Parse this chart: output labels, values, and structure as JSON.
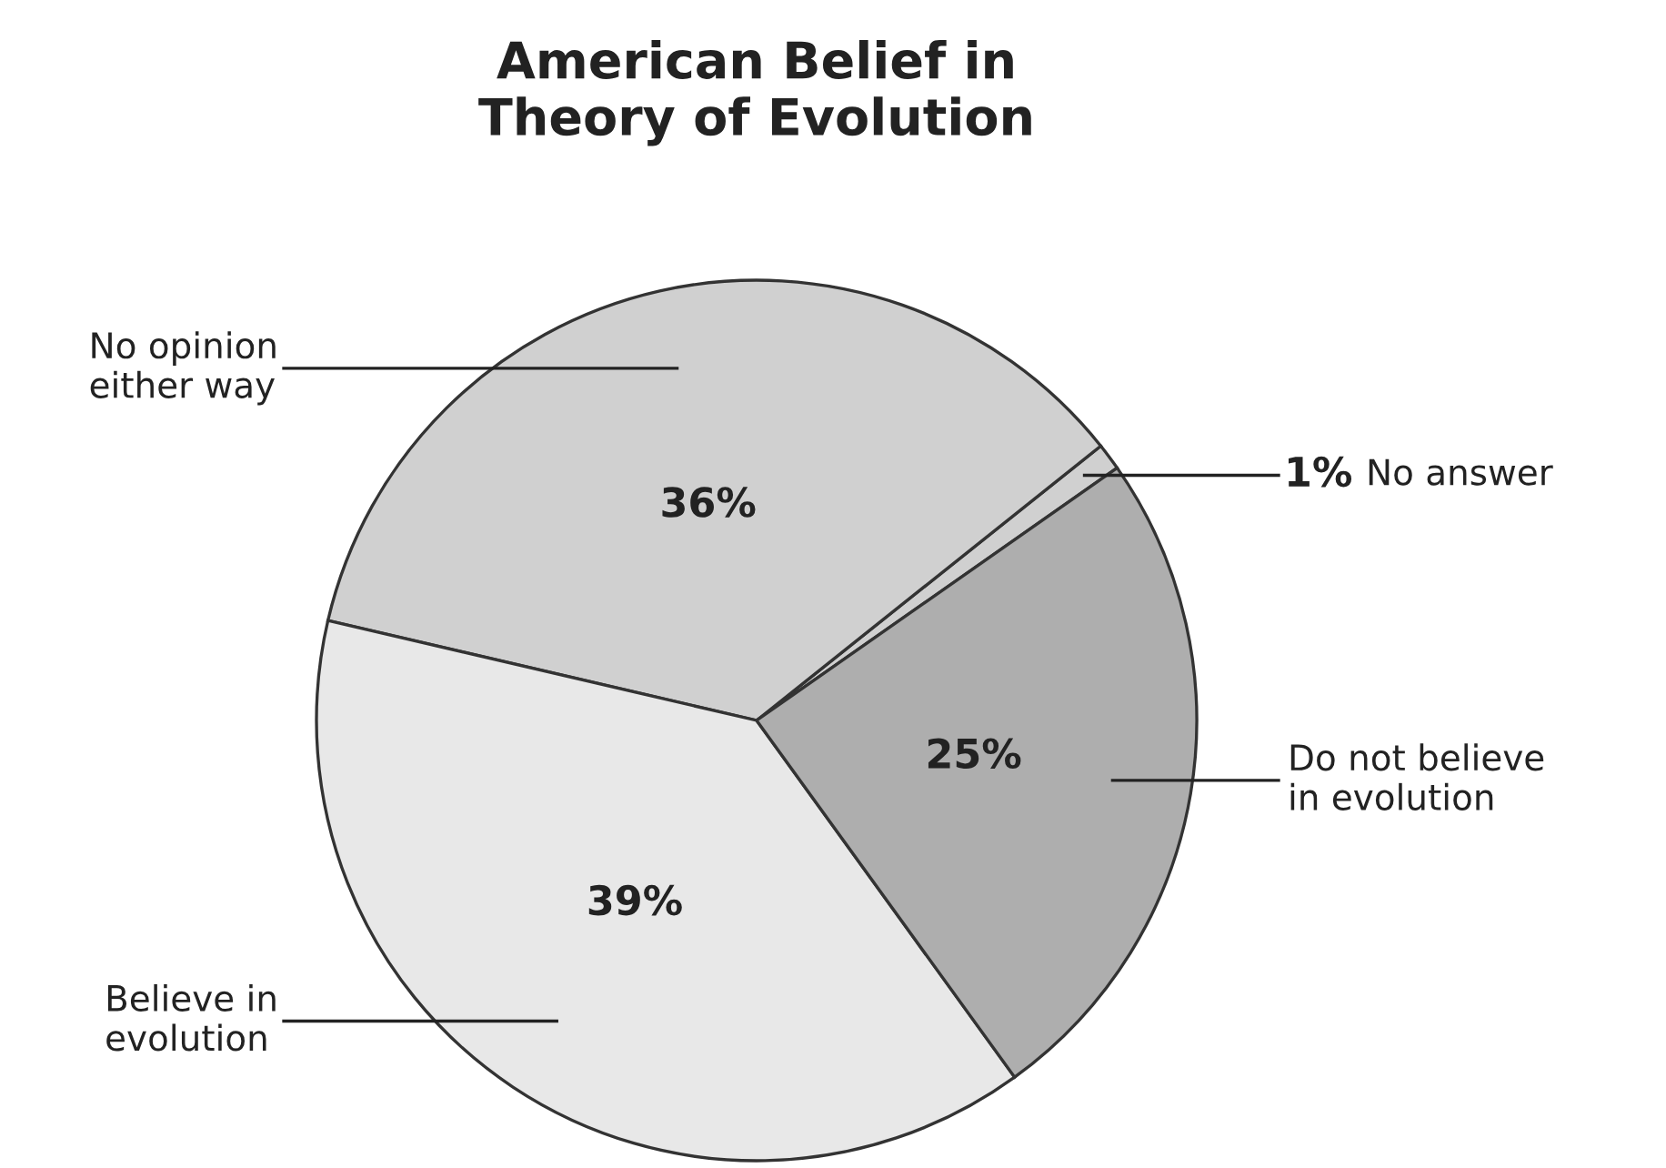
{
  "chart_data": {
    "type": "pie",
    "title": "American Belief in\nTheory of Evolution",
    "categories": [
      "No answer",
      "No opinion\neither way",
      "Believe in\nevolution",
      "Do not believe\nin evolution"
    ],
    "values": [
      1,
      36,
      39,
      25
    ],
    "value_labels": [
      "1%",
      "36%",
      "39%",
      "25%"
    ],
    "colors": [
      "#d0d0d0",
      "#d0d0d0",
      "#e8e8e8",
      "#aeaeae"
    ],
    "legend": false
  }
}
